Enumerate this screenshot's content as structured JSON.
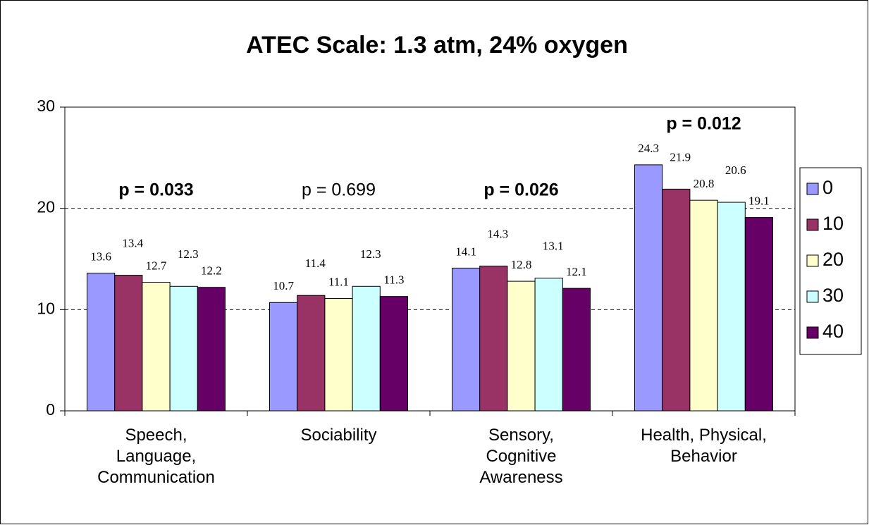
{
  "chart_data": {
    "type": "bar",
    "title": "ATEC Scale: 1.3 atm, 24% oxygen",
    "categories": [
      "Speech,\nLanguage,\nCommunication",
      "Sociability",
      "Sensory,\nCognitive\nAwareness",
      "Health, Physical,\nBehavior"
    ],
    "series": [
      {
        "name": "0",
        "color": "#9999ff",
        "values": [
          13.6,
          10.7,
          14.1,
          24.3
        ]
      },
      {
        "name": "10",
        "color": "#993366",
        "values": [
          13.4,
          11.4,
          14.3,
          21.9
        ]
      },
      {
        "name": "20",
        "color": "#ffffcc",
        "values": [
          12.7,
          11.1,
          12.8,
          20.8
        ]
      },
      {
        "name": "30",
        "color": "#ccffff",
        "values": [
          12.3,
          12.3,
          13.1,
          20.6
        ]
      },
      {
        "name": "40",
        "color": "#660066",
        "values": [
          12.2,
          11.3,
          12.1,
          19.1
        ]
      }
    ],
    "annotations": [
      {
        "text": "p = 0.033",
        "bold": true
      },
      {
        "text": "p = 0.699",
        "bold": false
      },
      {
        "text": "p = 0.026",
        "bold": true
      },
      {
        "text": "p = 0.012",
        "bold": true
      }
    ],
    "ylim": [
      0,
      30
    ],
    "yticks": [
      0,
      10,
      20,
      30
    ],
    "grid": true,
    "legend": "right"
  }
}
